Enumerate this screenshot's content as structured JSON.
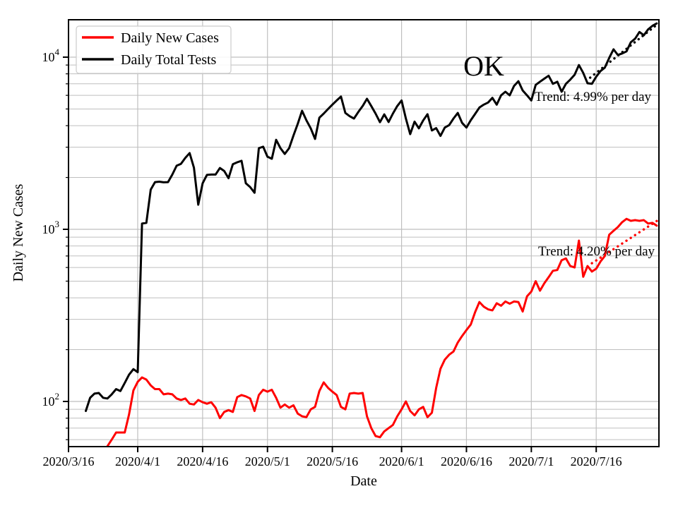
{
  "figure": {
    "title_annotation": "OK",
    "xlabel": "Date",
    "ylabel": "Daily New Cases",
    "background_color": "#ffffff",
    "grid_color": "#bfbfbf",
    "spine_color": "#000000"
  },
  "legend": {
    "items": [
      {
        "label": "Daily New Cases",
        "color": "#ff0000"
      },
      {
        "label": "Daily Total Tests",
        "color": "#000000"
      }
    ]
  },
  "annotations": {
    "tests_trend_label": "Trend: 4.99% per day",
    "cases_trend_label": "Trend: 4.20% per day"
  },
  "chart_data": {
    "type": "line",
    "title": "OK",
    "x_axis": {
      "label": "Date",
      "unit": "days since 2020/3/16",
      "domain_days": [
        0,
        136.5
      ],
      "ticks": [
        {
          "label": "2020/3/16",
          "day": 0
        },
        {
          "label": "2020/4/1",
          "day": 16
        },
        {
          "label": "2020/4/16",
          "day": 31
        },
        {
          "label": "2020/5/1",
          "day": 46
        },
        {
          "label": "2020/5/16",
          "day": 61
        },
        {
          "label": "2020/6/1",
          "day": 77
        },
        {
          "label": "2020/6/16",
          "day": 92
        },
        {
          "label": "2020/7/1",
          "day": 107
        },
        {
          "label": "2020/7/16",
          "day": 122
        }
      ]
    },
    "y_axis": {
      "label": "Daily New Cases",
      "scale": "log",
      "tick_exponents": [
        2,
        3,
        4
      ],
      "domain": [
        55,
        16500
      ],
      "grid": true
    },
    "series": [
      {
        "name": "Daily Total Tests",
        "color": "#000000",
        "start_day": 4,
        "values": [
          88,
          105,
          111,
          112,
          105,
          104,
          110,
          118,
          115,
          128,
          143,
          154,
          148,
          1080,
          1090,
          1700,
          1880,
          1890,
          1875,
          1880,
          2080,
          2340,
          2400,
          2600,
          2770,
          2280,
          1390,
          1850,
          2070,
          2080,
          2080,
          2270,
          2180,
          1980,
          2390,
          2450,
          2500,
          1850,
          1760,
          1630,
          2960,
          3020,
          2640,
          2570,
          3310,
          2960,
          2740,
          2960,
          3500,
          4100,
          4880,
          4300,
          3860,
          3350,
          4450,
          4700,
          5000,
          5300,
          5600,
          5900,
          4740,
          4540,
          4400,
          4800,
          5200,
          5730,
          5200,
          4700,
          4190,
          4650,
          4200,
          4700,
          5200,
          5600,
          4400,
          3570,
          4220,
          3860,
          4290,
          4660,
          3750,
          3870,
          3490,
          3900,
          4030,
          4400,
          4740,
          4150,
          3900,
          4300,
          4680,
          5100,
          5300,
          5450,
          5800,
          5300,
          6000,
          6300,
          6000,
          6800,
          7250,
          6400,
          6000,
          5600,
          6900,
          7200,
          7500,
          7800,
          7000,
          7200,
          6300,
          7000,
          7400,
          7900,
          9000,
          8100,
          7050,
          7000,
          7700,
          8300,
          8700,
          9900,
          11100,
          10300,
          10500,
          10800,
          12200,
          12800,
          14000,
          13400,
          14500,
          15200,
          15700
        ]
      },
      {
        "name": "Daily New Cases",
        "color": "#ff0000",
        "start_day": 9,
        "values": [
          55,
          60,
          66,
          66,
          66,
          84,
          116,
          130,
          138,
          134,
          124,
          118,
          118,
          110,
          111,
          110,
          104,
          102,
          104,
          97,
          96,
          102,
          99,
          97,
          99,
          92,
          80,
          87,
          89,
          87,
          106,
          109,
          107,
          104,
          88,
          109,
          117,
          114,
          117,
          105,
          92,
          96,
          92,
          95,
          85,
          82,
          81,
          90,
          93,
          115,
          129,
          120,
          114,
          109,
          93,
          90,
          111,
          112,
          111,
          112,
          82,
          70,
          63,
          62,
          67,
          70,
          73,
          82,
          90,
          100,
          88,
          83,
          90,
          93,
          81,
          86,
          120,
          155,
          175,
          187,
          195,
          220,
          240,
          260,
          280,
          330,
          378,
          355,
          343,
          338,
          372,
          360,
          381,
          370,
          381,
          378,
          333,
          408,
          435,
          500,
          440,
          486,
          527,
          574,
          580,
          661,
          677,
          612,
          600,
          860,
          530,
          612,
          568,
          590,
          650,
          700,
          930,
          980,
          1030,
          1100,
          1150,
          1120,
          1130,
          1120,
          1130,
          1080,
          1090,
          1050
        ]
      }
    ],
    "trend_lines": [
      {
        "name": "tests-trend",
        "color": "#000000",
        "label": "Trend: 4.99% per day",
        "rate_pct_per_day": 4.99,
        "p0": {
          "day": 120.6,
          "value": 7600
        },
        "p1": {
          "day": 136.4,
          "value": 15700
        }
      },
      {
        "name": "cases-trend",
        "color": "#ff0000",
        "label": "Trend: 4.20% per day",
        "rate_pct_per_day": 4.2,
        "p0": {
          "day": 121.0,
          "value": 635
        },
        "p1": {
          "day": 136.4,
          "value": 1135
        }
      }
    ],
    "legend_position": "upper left",
    "ylim": [
      55,
      16500
    ]
  }
}
